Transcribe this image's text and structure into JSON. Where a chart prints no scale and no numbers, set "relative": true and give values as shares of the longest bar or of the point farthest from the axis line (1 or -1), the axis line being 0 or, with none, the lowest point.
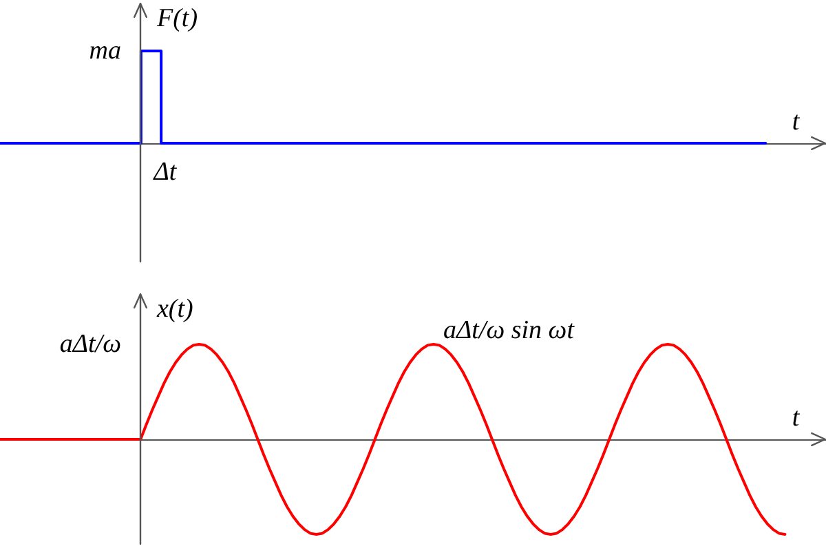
{
  "chart_data": [
    {
      "type": "step",
      "xlabel": "t",
      "ylabel": "F(t)",
      "relative": true,
      "color": "#0000ff",
      "categories": [
        null,
        null,
        null,
        null,
        null,
        null,
        null,
        null,
        null,
        null,
        null,
        null,
        null,
        null,
        null,
        null,
        null,
        null,
        null,
        null,
        null,
        null,
        null,
        null,
        null,
        null,
        null,
        null,
        null,
        null,
        null,
        null,
        null,
        null,
        null,
        null,
        null,
        null,
        null
      ],
      "values": [
        0,
        0,
        0,
        0,
        0,
        0,
        0,
        1,
        0,
        0,
        0,
        0,
        0,
        0,
        0,
        0,
        0,
        0,
        0,
        0,
        0,
        0,
        0,
        0,
        0,
        0,
        0,
        0,
        0,
        0,
        0,
        0,
        0,
        0,
        0,
        0,
        0,
        0,
        0
      ],
      "annotations": [
        "ma",
        "Δt"
      ]
    },
    {
      "type": "line",
      "xlabel": "t",
      "ylabel": "x(t)",
      "relative": true,
      "categories": [
        null,
        null,
        null,
        null,
        null,
        null,
        null,
        null,
        null,
        null,
        null,
        null,
        null,
        null,
        null,
        null,
        null,
        null,
        null,
        null,
        null,
        null,
        null,
        null,
        null,
        null,
        null,
        null,
        null,
        null,
        null,
        null,
        null,
        null,
        null,
        null,
        null,
        null,
        null,
        null,
        null,
        null,
        null,
        null,
        null,
        null,
        null,
        null,
        null,
        null,
        null,
        null,
        null,
        null,
        null,
        null,
        null,
        null,
        null,
        null,
        null,
        null,
        null,
        null,
        null,
        null,
        null,
        null,
        null,
        null,
        null,
        null,
        null,
        null,
        null,
        null,
        null,
        null,
        null,
        null,
        null,
        null,
        null,
        null,
        null,
        null,
        null,
        null,
        null,
        null,
        null,
        null,
        null,
        null,
        null,
        null,
        null,
        null,
        null,
        null,
        null,
        null,
        null,
        null,
        null,
        null,
        null,
        null,
        null,
        null,
        null,
        null,
        null,
        null,
        null,
        null,
        null,
        null,
        null,
        null,
        null,
        null,
        null,
        null,
        null,
        null,
        null,
        null,
        null,
        null,
        null,
        null,
        null,
        null,
        null
      ],
      "series": [
        {
          "name": "aΔt/ω sin ωt",
          "color": "#ff0000",
          "values": [
            0,
            0,
            0,
            0,
            0,
            0,
            0,
            0,
            0,
            0,
            0,
            0,
            0,
            0,
            0,
            0,
            0,
            0,
            0,
            0,
            0,
            0,
            0,
            0,
            0,
            0.16,
            0.31,
            0.45,
            0.59,
            0.71,
            0.81,
            0.89,
            0.95,
            0.99,
            1,
            0.99,
            0.95,
            0.89,
            0.81,
            0.71,
            0.59,
            0.45,
            0.31,
            0.16,
            0,
            -0.16,
            -0.31,
            -0.45,
            -0.59,
            -0.71,
            -0.81,
            -0.89,
            -0.95,
            -0.99,
            -1,
            -0.99,
            -0.95,
            -0.89,
            -0.81,
            -0.71,
            -0.59,
            -0.45,
            -0.31,
            -0.16,
            0,
            0.16,
            0.31,
            0.45,
            0.59,
            0.71,
            0.81,
            0.89,
            0.95,
            0.99,
            1,
            0.99,
            0.95,
            0.89,
            0.81,
            0.71,
            0.59,
            0.45,
            0.31,
            0.16,
            0,
            -0.16,
            -0.31,
            -0.45,
            -0.59,
            -0.71,
            -0.81,
            -0.89,
            -0.95,
            -0.99,
            -1,
            -0.99,
            -0.95,
            -0.89,
            -0.81,
            -0.71,
            -0.59,
            -0.45,
            -0.31,
            -0.16,
            0,
            0.16,
            0.31,
            0.45,
            0.59,
            0.71,
            0.81,
            0.89,
            0.95,
            0.99,
            1,
            0.99,
            0.95,
            0.89,
            0.81,
            0.71,
            0.59,
            0.45,
            0.31,
            0.16,
            0,
            -0.16,
            -0.31,
            -0.45,
            -0.59,
            -0.71,
            -0.81,
            -0.89,
            -0.95,
            -0.99,
            -1
          ]
        }
      ],
      "annotations": [
        "aΔt/ω"
      ]
    }
  ]
}
